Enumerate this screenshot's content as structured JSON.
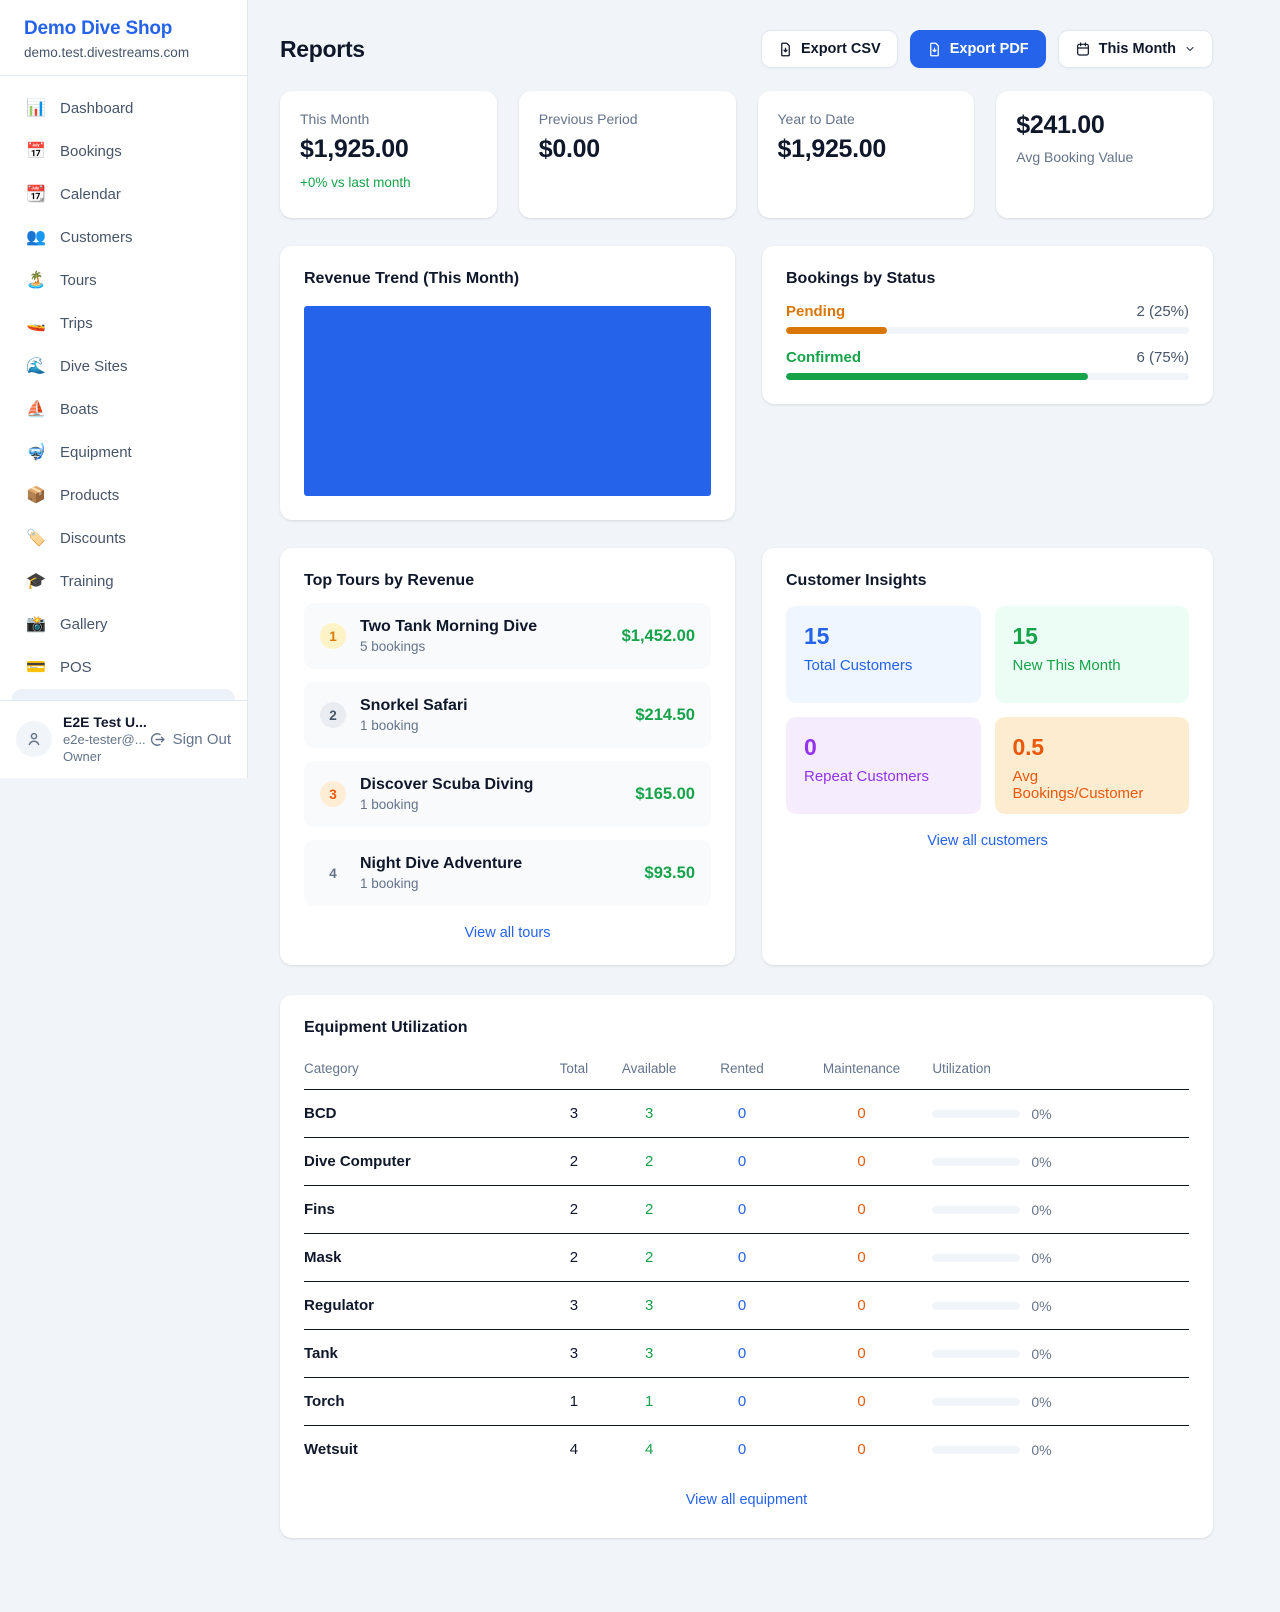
{
  "colors": {
    "accent_blue": "#2563eb",
    "green": "#16a34a",
    "amber": "#d97706",
    "orange": "#ea580c",
    "purple": "#9333ea",
    "page_bg": "#f1f5f9"
  },
  "sidebar": {
    "title": "Demo Dive Shop",
    "subdomain": "demo.test.divestreams.com",
    "items": [
      {
        "icon": "📊",
        "label": "Dashboard"
      },
      {
        "icon": "📅",
        "label": "Bookings"
      },
      {
        "icon": "📆",
        "label": "Calendar"
      },
      {
        "icon": "👥",
        "label": "Customers"
      },
      {
        "icon": "🏝️",
        "label": "Tours"
      },
      {
        "icon": "🚤",
        "label": "Trips"
      },
      {
        "icon": "🌊",
        "label": "Dive Sites"
      },
      {
        "icon": "⛵",
        "label": "Boats"
      },
      {
        "icon": "🤿",
        "label": "Equipment"
      },
      {
        "icon": "📦",
        "label": "Products"
      },
      {
        "icon": "🏷️",
        "label": "Discounts"
      },
      {
        "icon": "🎓",
        "label": "Training"
      },
      {
        "icon": "📸",
        "label": "Gallery"
      },
      {
        "icon": "💳",
        "label": "POS"
      }
    ],
    "user": {
      "name": "E2E Test U...",
      "email": "e2e-tester@...",
      "role": "Owner",
      "sign_out": "Sign Out"
    }
  },
  "header": {
    "title": "Reports",
    "export_csv": "Export CSV",
    "export_pdf": "Export PDF",
    "period": "This Month"
  },
  "stats": [
    {
      "label": "This Month",
      "value": "$1,925.00",
      "delta": "+0% vs last month"
    },
    {
      "label": "Previous Period",
      "value": "$0.00"
    },
    {
      "label": "Year to Date",
      "value": "$1,925.00"
    },
    {
      "label": "Avg Booking Value",
      "value": "$241.00"
    }
  ],
  "revenue_trend": {
    "title": "Revenue Trend (This Month)",
    "bar_color": "#2563eb"
  },
  "bookings_by_status": {
    "title": "Bookings by Status",
    "rows": [
      {
        "label": "Pending",
        "count": "2 (25%)",
        "pct": 25
      },
      {
        "label": "Confirmed",
        "count": "6 (75%)",
        "pct": 75
      }
    ]
  },
  "top_tours": {
    "title": "Top Tours by Revenue",
    "items": [
      {
        "rank": "1",
        "name": "Two Tank Morning Dive",
        "bookings": "5 bookings",
        "revenue": "$1,452.00"
      },
      {
        "rank": "2",
        "name": "Snorkel Safari",
        "bookings": "1 booking",
        "revenue": "$214.50"
      },
      {
        "rank": "3",
        "name": "Discover Scuba Diving",
        "bookings": "1 booking",
        "revenue": "$165.00"
      },
      {
        "rank": "4",
        "name": "Night Dive Adventure",
        "bookings": "1 booking",
        "revenue": "$93.50"
      }
    ],
    "view_all": "View all tours"
  },
  "customer_insights": {
    "title": "Customer Insights",
    "tiles": [
      {
        "value": "15",
        "label": "Total Customers"
      },
      {
        "value": "15",
        "label": "New This Month"
      },
      {
        "value": "0",
        "label": "Repeat Customers"
      },
      {
        "value": "0.5",
        "label": "Avg Bookings/Customer"
      }
    ],
    "view_all": "View all customers"
  },
  "equipment": {
    "title": "Equipment Utilization",
    "columns": [
      "Category",
      "Total",
      "Available",
      "Rented",
      "Maintenance",
      "Utilization"
    ],
    "rows": [
      {
        "category": "BCD",
        "total": "3",
        "available": "3",
        "rented": "0",
        "maintenance": "0",
        "utilization": "0%"
      },
      {
        "category": "Dive Computer",
        "total": "2",
        "available": "2",
        "rented": "0",
        "maintenance": "0",
        "utilization": "0%"
      },
      {
        "category": "Fins",
        "total": "2",
        "available": "2",
        "rented": "0",
        "maintenance": "0",
        "utilization": "0%"
      },
      {
        "category": "Mask",
        "total": "2",
        "available": "2",
        "rented": "0",
        "maintenance": "0",
        "utilization": "0%"
      },
      {
        "category": "Regulator",
        "total": "3",
        "available": "3",
        "rented": "0",
        "maintenance": "0",
        "utilization": "0%"
      },
      {
        "category": "Tank",
        "total": "3",
        "available": "3",
        "rented": "0",
        "maintenance": "0",
        "utilization": "0%"
      },
      {
        "category": "Torch",
        "total": "1",
        "available": "1",
        "rented": "0",
        "maintenance": "0",
        "utilization": "0%"
      },
      {
        "category": "Wetsuit",
        "total": "4",
        "available": "4",
        "rented": "0",
        "maintenance": "0",
        "utilization": "0%"
      }
    ],
    "view_all": "View all equipment"
  }
}
